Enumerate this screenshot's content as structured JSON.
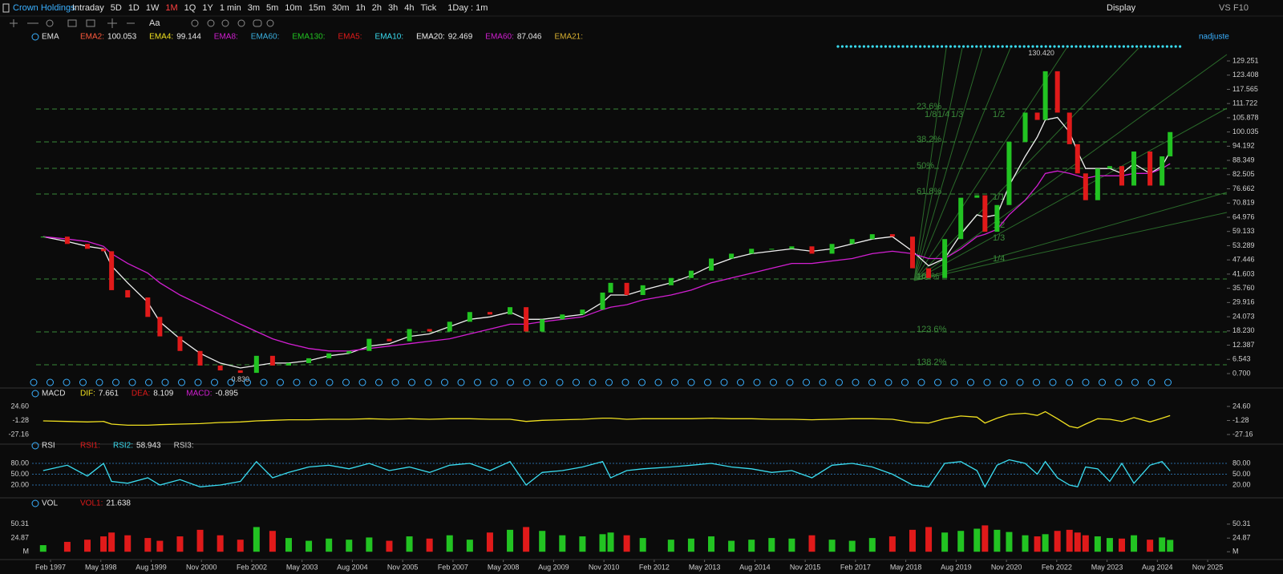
{
  "toolbar": {
    "symbol": "Crown Holdings",
    "periods": [
      "Intraday",
      "5D",
      "1D",
      "1W",
      "1M",
      "1Q",
      "1Y",
      "1 min",
      "3m",
      "5m",
      "10m",
      "15m",
      "30m",
      "1h",
      "2h",
      "3h",
      "4h",
      "Tick"
    ],
    "active": "1M",
    "interval": "1Day : 1m",
    "display": "Display",
    "vs": "VS",
    "f10": "F10"
  },
  "adjust": "nadjuste",
  "chart_data": {
    "type": "candlestick",
    "x": [
      1996.9,
      1997.5,
      1998.0,
      1998.4,
      1998.6,
      1999.0,
      1999.5,
      1999.8,
      2000.3,
      2000.8,
      2001.3,
      2001.8,
      2002.2,
      2002.6,
      2003.0,
      2003.5,
      2004.0,
      2004.5,
      2005.0,
      2005.5,
      2006.0,
      2006.5,
      2007.0,
      2007.5,
      2008.0,
      2008.5,
      2008.9,
      2009.3,
      2009.8,
      2010.3,
      2010.8,
      2011.0,
      2011.4,
      2011.8,
      2012.5,
      2013.0,
      2013.5,
      2014.0,
      2014.5,
      2015.0,
      2015.5,
      2016.0,
      2016.5,
      2017.0,
      2017.5,
      2018.0,
      2018.5,
      2018.9,
      2019.3,
      2019.7,
      2020.1,
      2020.3,
      2020.6,
      2020.9,
      2021.3,
      2021.6,
      2021.8,
      2022.1,
      2022.4,
      2022.6,
      2022.8,
      2023.1,
      2023.4,
      2023.7,
      2024.0,
      2024.4,
      2024.7,
      2024.9
    ],
    "xlim": [
      1996.625,
      2026.31
    ],
    "xticks": [
      {
        "value": 1997.083,
        "label": "Feb 1997"
      },
      {
        "value": 1998.333,
        "label": "May 1998"
      },
      {
        "value": 1999.583,
        "label": "Aug 1999"
      },
      {
        "value": 2000.833,
        "label": "Nov 2000"
      },
      {
        "value": 2002.083,
        "label": "Feb 2002"
      },
      {
        "value": 2003.333,
        "label": "May 2003"
      },
      {
        "value": 2004.583,
        "label": "Aug 2004"
      },
      {
        "value": 2005.833,
        "label": "Nov 2005"
      },
      {
        "value": 2007.083,
        "label": "Feb 2007"
      },
      {
        "value": 2008.333,
        "label": "May 2008"
      },
      {
        "value": 2009.583,
        "label": "Aug 2009"
      },
      {
        "value": 2010.833,
        "label": "Nov 2010"
      },
      {
        "value": 2012.083,
        "label": "Feb 2012"
      },
      {
        "value": 2013.333,
        "label": "May 2013"
      },
      {
        "value": 2014.583,
        "label": "Aug 2014"
      },
      {
        "value": 2015.833,
        "label": "Nov 2015"
      },
      {
        "value": 2017.083,
        "label": "Feb 2017"
      },
      {
        "value": 2018.333,
        "label": "May 2018"
      },
      {
        "value": 2019.583,
        "label": "Aug 2019"
      },
      {
        "value": 2020.833,
        "label": "Nov 2020"
      },
      {
        "value": 2022.083,
        "label": "Feb 2022"
      },
      {
        "value": 2023.333,
        "label": "May 2023"
      },
      {
        "value": 2024.583,
        "label": "Aug 2024"
      },
      {
        "value": 2025.833,
        "label": "Nov 2025"
      }
    ],
    "ylim": [
      -0.62,
      134.52
    ],
    "yticks": [
      {
        "value": 0.7,
        "label": "0.700"
      },
      6.543,
      12.387,
      {
        "value": 18.23,
        "label": "18.230"
      },
      24.073,
      29.916,
      {
        "value": 35.76,
        "label": "35.760"
      },
      41.603,
      47.446,
      53.289,
      59.133,
      64.976,
      70.819,
      76.662,
      82.505,
      88.349,
      94.192,
      100.035,
      105.878,
      111.722,
      117.565,
      123.408,
      129.251
    ],
    "up_color": "#22c322",
    "down_color": "#e01a1a",
    "series": [
      {
        "name": "Close",
        "values": [
          57,
          54,
          52,
          51,
          35,
          32,
          24,
          16,
          10,
          4,
          2,
          1,
          8,
          4,
          5,
          7,
          9,
          10,
          15,
          14,
          19,
          18,
          22,
          26,
          25,
          28,
          18,
          23,
          25,
          27,
          34,
          38,
          33,
          37,
          40,
          43,
          48,
          50,
          52,
          52,
          53,
          50,
          54,
          56,
          58,
          57,
          44,
          40,
          56,
          73,
          74,
          59,
          70,
          96,
          108,
          105,
          125,
          108,
          95,
          83,
          72,
          85,
          86,
          78,
          92,
          78,
          90,
          100
        ]
      },
      {
        "name": "EMA20",
        "color": "#f0f0f0",
        "values": [
          57,
          55,
          53,
          52,
          45,
          38,
          30,
          22,
          15,
          9,
          5,
          3,
          4,
          5,
          5,
          6,
          8,
          9,
          12,
          13,
          16,
          17,
          20,
          23,
          24,
          26,
          23,
          23,
          24,
          25,
          30,
          33,
          33,
          35,
          38,
          41,
          45,
          48,
          50,
          51,
          52,
          51,
          52,
          54,
          56,
          57,
          51,
          45,
          48,
          58,
          66,
          65,
          66,
          78,
          90,
          98,
          105,
          106,
          100,
          92,
          85,
          85,
          85,
          83,
          87,
          83,
          86,
          92
        ]
      },
      {
        "name": "EMA60",
        "color": "#d21fd2",
        "values": [
          57,
          56,
          55,
          53,
          50,
          46,
          42,
          38,
          33,
          29,
          25,
          21,
          18,
          15,
          13,
          11,
          10,
          10,
          11,
          12,
          13,
          14,
          15,
          17,
          19,
          21,
          21,
          22,
          23,
          24,
          27,
          28,
          29,
          31,
          33,
          35,
          38,
          40,
          42,
          44,
          46,
          46,
          47,
          48,
          50,
          51,
          50,
          48,
          48,
          52,
          57,
          58,
          60,
          66,
          72,
          78,
          83,
          84,
          83,
          82,
          81,
          82,
          82,
          82,
          83,
          83,
          85,
          87
        ]
      }
    ],
    "indicator": "EMA",
    "legend": [
      {
        "name": "EMA2:",
        "value": 100.053,
        "color": "#ff5a3c"
      },
      {
        "name": "EMA4:",
        "value": 99.144,
        "color": "#f0e020"
      },
      {
        "name": "EMA8:",
        "color": "#d21fd2"
      },
      {
        "name": "EMA60:",
        "color": "#3ab0e0"
      },
      {
        "name": "EMA130:",
        "color": "#22c322"
      },
      {
        "name": "EMA5:",
        "color": "#e01a1a"
      },
      {
        "name": "EMA10:",
        "color": "#3adcf0"
      },
      {
        "name": "EMA20:",
        "value": 92.469,
        "color": "#f0f0f0"
      },
      {
        "name": "EMA60:",
        "value": 87.046,
        "color": "#d21fd2"
      },
      {
        "name": "EMA21:",
        "color": "#d8b030"
      }
    ],
    "annotations": [
      {
        "x": 2021.7,
        "value": 130.42,
        "label": "130.420"
      },
      {
        "x": 2001.8,
        "value": 0.83,
        "label": "0.830"
      }
    ],
    "fib": {
      "labels": [
        "23.6%",
        "38.2%",
        "50%",
        "61.8%",
        "100%",
        "123.6%",
        "138.2%"
      ],
      "prices": [
        109.47,
        95.96,
        85.08,
        74.54,
        39.6,
        17.84,
        4.32
      ]
    },
    "fan_labels": [
      "1/8",
      "1/4",
      "1/3",
      "1/2",
      "1/1",
      "1/2",
      "1/3",
      "1/4",
      "1/8"
    ]
  },
  "macd": {
    "title": "MACD",
    "legend": [
      {
        "name": "DIF:",
        "value": 7.661,
        "color": "#f0e020"
      },
      {
        "name": "DEA:",
        "value": 8.109,
        "color": "#e01a1a"
      },
      {
        "name": "MACD:",
        "value": -0.895,
        "color": "#d21fd2"
      }
    ],
    "values": [
      -2,
      -3,
      -4,
      -3,
      -8,
      -10,
      -10,
      -9,
      -8,
      -7,
      -5,
      -4,
      -2,
      -1,
      0,
      0,
      1,
      1,
      2,
      1,
      2,
      1,
      2,
      2,
      1,
      1,
      -3,
      -1,
      0,
      1,
      3,
      3,
      1,
      2,
      2,
      2,
      3,
      2,
      2,
      1,
      1,
      0,
      1,
      2,
      2,
      1,
      -5,
      -6,
      2,
      7,
      5,
      -6,
      3,
      10,
      12,
      8,
      15,
      2,
      -12,
      -15,
      -8,
      2,
      1,
      -3,
      4,
      -4,
      3,
      7.7
    ],
    "ylim": [
      -36.03,
      34.95
    ],
    "yticks": [
      {
        "value": 24.6,
        "label": "24.60"
      },
      -1.28,
      -27.16
    ]
  },
  "rsi": {
    "title": "RSI",
    "legend": [
      {
        "name": "RSI1:",
        "color": "#e01a1a"
      },
      {
        "name": "RSI2:",
        "value": 58.943,
        "color": "#3adcf0"
      },
      {
        "name": "RSI3:",
        "color": "#cfcfcf"
      }
    ],
    "values": [
      60,
      75,
      45,
      80,
      30,
      25,
      40,
      20,
      35,
      15,
      20,
      30,
      85,
      40,
      55,
      70,
      75,
      65,
      80,
      60,
      70,
      55,
      75,
      80,
      60,
      85,
      20,
      55,
      60,
      70,
      85,
      40,
      60,
      65,
      70,
      75,
      80,
      70,
      65,
      55,
      60,
      40,
      75,
      80,
      70,
      50,
      20,
      15,
      80,
      85,
      60,
      15,
      75,
      90,
      80,
      50,
      85,
      40,
      20,
      15,
      70,
      65,
      30,
      80,
      25,
      75,
      85,
      58.9
    ],
    "ylim": [
      -2.2,
      108.9
    ],
    "yticks": [
      {
        "value": 80,
        "label": "80.00"
      },
      {
        "value": 50,
        "label": "50.00"
      },
      {
        "value": 20,
        "label": "20.00"
      }
    ]
  },
  "vol": {
    "title": "VOL",
    "legend": [
      {
        "name": "VOL1:",
        "value": 21.638,
        "color": "#e01a1a"
      }
    ],
    "values": [
      12,
      18,
      22,
      28,
      35,
      30,
      25,
      20,
      28,
      40,
      30,
      22,
      45,
      38,
      25,
      20,
      24,
      22,
      26,
      20,
      28,
      24,
      30,
      22,
      35,
      40,
      45,
      38,
      30,
      28,
      32,
      35,
      30,
      25,
      22,
      24,
      28,
      20,
      22,
      25,
      24,
      30,
      22,
      20,
      25,
      28,
      40,
      45,
      35,
      38,
      42,
      48,
      40,
      36,
      30,
      28,
      32,
      38,
      40,
      35,
      30,
      28,
      25,
      24,
      30,
      22,
      26,
      21.6
    ],
    "ylim": [
      -5.5,
      88
    ],
    "yticks": [
      {
        "value": 50.31,
        "label": "50.31"
      },
      {
        "value": 24.87,
        "label": "24.87"
      },
      {
        "value": 0,
        "label": "M"
      }
    ]
  }
}
